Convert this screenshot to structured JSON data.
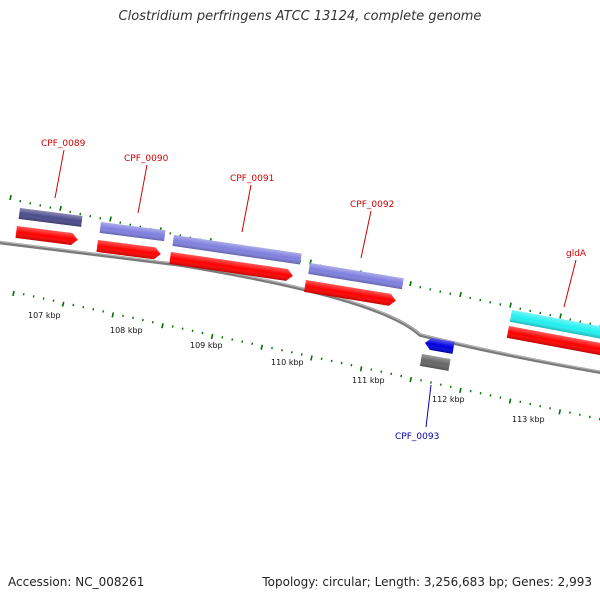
{
  "title": "Clostridium perfringens ATCC 13124, complete genome",
  "footer": {
    "accession": "Accession: NC_008261",
    "summary": "Topology: circular; Length: 3,256,683 bp; Genes: 2,993"
  },
  "colors": {
    "backbone": "#7a7a7a",
    "cds": "#ff0000",
    "gene_default": "#7f7fdf",
    "gene_dark": "#4b4b8c",
    "gene_cyan": "#22f0f0",
    "gene_blue": "#0000e0",
    "gene_gray": "#666666",
    "tick": "#007000",
    "label_red": "#cc0000",
    "label_blue": "#0000aa"
  },
  "tick_labels": [
    "107 kbp",
    "108 kbp",
    "109 kbp",
    "110 kbp",
    "111 kbp",
    "112 kbp",
    "113 kbp"
  ],
  "genes": [
    {
      "name": "CPF_0089"
    },
    {
      "name": "CPF_0090"
    },
    {
      "name": "CPF_0091"
    },
    {
      "name": "CPF_0092"
    },
    {
      "name": "gldA"
    },
    {
      "name": "CPF_0093"
    }
  ]
}
